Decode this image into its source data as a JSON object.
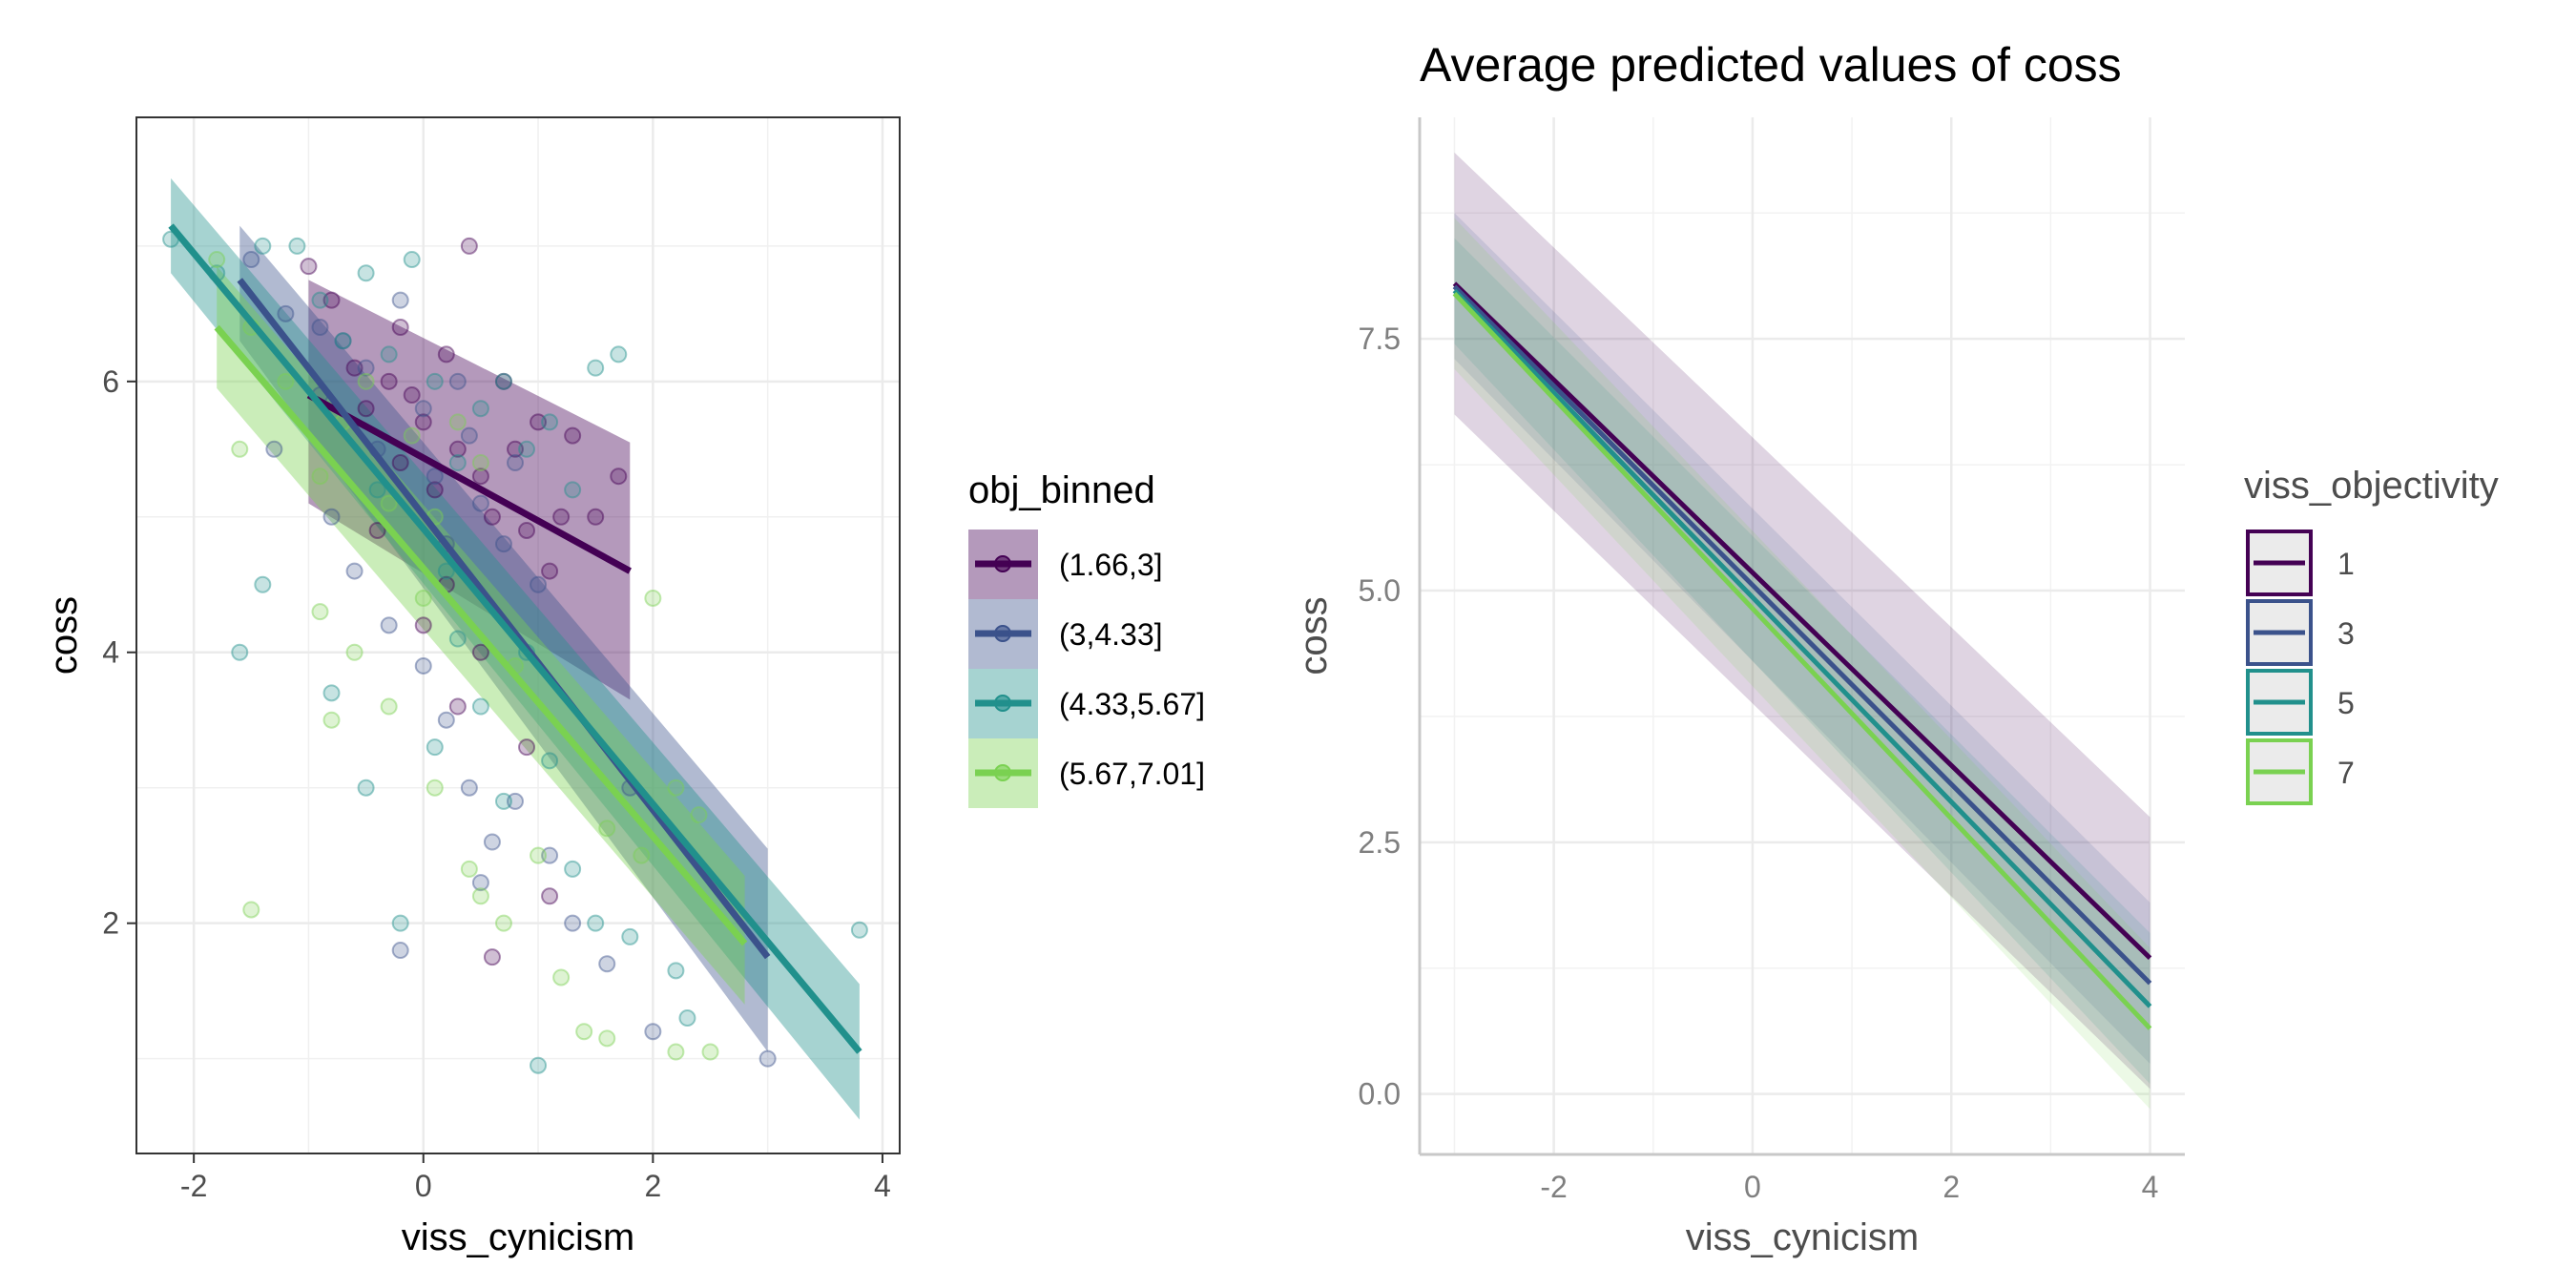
{
  "chart_data": [
    {
      "type": "scatter",
      "title": "",
      "xlabel": "viss_cynicism",
      "ylabel": "coss",
      "xlim": [
        -2.5,
        4.15
      ],
      "ylim": [
        0.3,
        7.95
      ],
      "xticks": [
        -2,
        0,
        2,
        4
      ],
      "yticks": [
        2,
        4,
        6
      ],
      "grid": true,
      "legend": {
        "title": "obj_binned",
        "placement": "right"
      },
      "series": [
        {
          "name": "(1.66,3]",
          "color": "#440154",
          "fit": {
            "x": [
              -1.0,
              1.8
            ],
            "y": [
              5.9,
              4.6
            ]
          },
          "band": {
            "x": [
              -1.0,
              1.8
            ],
            "lo": [
              5.1,
              3.65
            ],
            "hi": [
              6.75,
              5.55
            ]
          },
          "points": [
            [
              -1.0,
              6.85
            ],
            [
              -0.8,
              6.6
            ],
            [
              -0.6,
              6.1
            ],
            [
              -0.5,
              5.8
            ],
            [
              -0.3,
              6.0
            ],
            [
              -0.2,
              5.4
            ],
            [
              -0.1,
              5.9
            ],
            [
              0.0,
              5.7
            ],
            [
              0.1,
              5.2
            ],
            [
              0.2,
              6.2
            ],
            [
              0.3,
              5.5
            ],
            [
              0.4,
              7.0
            ],
            [
              0.5,
              5.3
            ],
            [
              0.6,
              5.0
            ],
            [
              0.7,
              6.0
            ],
            [
              0.8,
              5.5
            ],
            [
              0.9,
              4.9
            ],
            [
              1.0,
              5.7
            ],
            [
              1.1,
              4.6
            ],
            [
              1.2,
              5.0
            ],
            [
              1.3,
              5.6
            ],
            [
              1.5,
              5.0
            ],
            [
              1.7,
              5.3
            ],
            [
              0.2,
              4.5
            ],
            [
              0.5,
              4.0
            ],
            [
              -0.4,
              4.9
            ],
            [
              0.9,
              3.3
            ],
            [
              0.6,
              1.75
            ],
            [
              1.1,
              2.2
            ],
            [
              0.3,
              3.6
            ],
            [
              -0.2,
              6.4
            ],
            [
              0.0,
              4.2
            ]
          ]
        },
        {
          "name": "(3,4.33]",
          "color": "#3b528b",
          "fit": {
            "x": [
              -1.6,
              3.0
            ],
            "y": [
              6.75,
              1.75
            ]
          },
          "band": {
            "x": [
              -1.6,
              3.0
            ],
            "lo": [
              6.3,
              1.05
            ],
            "hi": [
              7.15,
              2.55
            ]
          },
          "points": [
            [
              -1.5,
              6.9
            ],
            [
              -1.2,
              6.5
            ],
            [
              -0.9,
              5.9
            ],
            [
              -0.7,
              6.3
            ],
            [
              -0.5,
              6.1
            ],
            [
              -0.4,
              5.5
            ],
            [
              -0.2,
              6.6
            ],
            [
              0.0,
              5.8
            ],
            [
              0.1,
              5.3
            ],
            [
              0.3,
              6.0
            ],
            [
              0.4,
              5.6
            ],
            [
              0.5,
              5.1
            ],
            [
              0.7,
              4.8
            ],
            [
              0.8,
              5.4
            ],
            [
              1.0,
              4.5
            ],
            [
              -0.8,
              5.0
            ],
            [
              -0.6,
              4.6
            ],
            [
              -0.3,
              4.2
            ],
            [
              0.0,
              3.9
            ],
            [
              0.2,
              3.5
            ],
            [
              0.4,
              3.0
            ],
            [
              0.6,
              2.6
            ],
            [
              0.8,
              2.9
            ],
            [
              1.1,
              2.5
            ],
            [
              1.3,
              2.0
            ],
            [
              1.6,
              1.7
            ],
            [
              2.0,
              1.2
            ],
            [
              3.0,
              1.0
            ],
            [
              -0.2,
              1.8
            ],
            [
              0.5,
              2.3
            ],
            [
              -1.3,
              5.5
            ],
            [
              -0.9,
              6.4
            ],
            [
              0.2,
              4.8
            ],
            [
              1.8,
              3.0
            ]
          ]
        },
        {
          "name": "(4.33,5.67]",
          "color": "#21908c",
          "fit": {
            "x": [
              -2.2,
              3.8
            ],
            "y": [
              7.15,
              1.05
            ]
          },
          "band": {
            "x": [
              -2.2,
              3.8
            ],
            "lo": [
              6.8,
              0.55
            ],
            "hi": [
              7.5,
              1.55
            ]
          },
          "points": [
            [
              -2.2,
              7.05
            ],
            [
              -1.8,
              6.8
            ],
            [
              -1.4,
              7.0
            ],
            [
              -1.1,
              7.0
            ],
            [
              -0.9,
              6.6
            ],
            [
              -0.7,
              6.3
            ],
            [
              -0.5,
              6.8
            ],
            [
              -0.3,
              6.2
            ],
            [
              -0.1,
              6.9
            ],
            [
              0.1,
              6.0
            ],
            [
              0.3,
              5.4
            ],
            [
              0.5,
              5.8
            ],
            [
              0.7,
              6.0
            ],
            [
              0.9,
              5.5
            ],
            [
              1.1,
              5.7
            ],
            [
              1.3,
              5.2
            ],
            [
              1.5,
              6.1
            ],
            [
              1.7,
              6.2
            ],
            [
              -1.6,
              4.0
            ],
            [
              -1.4,
              4.5
            ],
            [
              -0.8,
              3.7
            ],
            [
              -0.5,
              3.0
            ],
            [
              -0.2,
              2.0
            ],
            [
              0.1,
              3.3
            ],
            [
              0.3,
              4.1
            ],
            [
              0.5,
              3.6
            ],
            [
              0.7,
              2.9
            ],
            [
              0.9,
              4.0
            ],
            [
              1.1,
              3.2
            ],
            [
              1.3,
              2.4
            ],
            [
              1.5,
              2.0
            ],
            [
              1.8,
              1.9
            ],
            [
              2.2,
              1.65
            ],
            [
              3.8,
              1.95
            ],
            [
              1.0,
              0.95
            ],
            [
              2.3,
              1.3
            ],
            [
              0.2,
              4.6
            ],
            [
              -0.4,
              5.2
            ]
          ]
        },
        {
          "name": "(5.67,7.01]",
          "color": "#7ad151",
          "fit": {
            "x": [
              -1.8,
              2.8
            ],
            "y": [
              6.4,
              1.85
            ]
          },
          "band": {
            "x": [
              -1.8,
              2.8
            ],
            "lo": [
              5.95,
              1.4
            ],
            "hi": [
              6.85,
              2.35
            ]
          },
          "points": [
            [
              -1.8,
              6.9
            ],
            [
              -1.5,
              6.4
            ],
            [
              -1.6,
              5.5
            ],
            [
              -1.2,
              6.0
            ],
            [
              -0.9,
              5.3
            ],
            [
              -0.7,
              5.7
            ],
            [
              -0.5,
              6.0
            ],
            [
              -0.3,
              5.1
            ],
            [
              -0.1,
              5.6
            ],
            [
              0.1,
              5.0
            ],
            [
              0.3,
              5.7
            ],
            [
              0.5,
              5.4
            ],
            [
              -0.9,
              4.3
            ],
            [
              -0.8,
              3.5
            ],
            [
              -0.6,
              4.0
            ],
            [
              -0.3,
              3.6
            ],
            [
              0.1,
              3.0
            ],
            [
              0.4,
              2.4
            ],
            [
              0.7,
              2.0
            ],
            [
              1.0,
              2.5
            ],
            [
              1.2,
              1.6
            ],
            [
              1.4,
              1.2
            ],
            [
              1.6,
              1.15
            ],
            [
              2.2,
              1.05
            ],
            [
              2.5,
              1.05
            ],
            [
              2.2,
              3.0
            ],
            [
              2.4,
              2.8
            ],
            [
              1.9,
              2.5
            ],
            [
              2.0,
              4.4
            ],
            [
              -1.5,
              2.1
            ],
            [
              0.5,
              2.2
            ],
            [
              1.6,
              2.7
            ],
            [
              0.8,
              3.9
            ],
            [
              0.0,
              4.4
            ]
          ]
        }
      ]
    },
    {
      "type": "line",
      "title": "Average predicted values of coss",
      "xlabel": "viss_cynicism",
      "ylabel": "coss",
      "xlim": [
        -3.35,
        4.35
      ],
      "ylim": [
        -0.6,
        9.7
      ],
      "xticks": [
        -2,
        0,
        2,
        4
      ],
      "yticks": [
        0.0,
        2.5,
        5.0,
        7.5
      ],
      "ytick_labels": [
        "0.0",
        "2.5",
        "5.0",
        "7.5"
      ],
      "grid": true,
      "legend": {
        "title": "viss_objectivity",
        "placement": "right"
      },
      "series": [
        {
          "name": "1",
          "color": "#440154",
          "x": [
            -3,
            4
          ],
          "y": [
            8.05,
            1.35
          ],
          "band_lo": [
            6.75,
            0.05
          ],
          "band_hi": [
            9.35,
            2.75
          ]
        },
        {
          "name": "3",
          "color": "#3b528b",
          "x": [
            -3,
            4
          ],
          "y": [
            8.02,
            1.1
          ],
          "band_lo": [
            7.3,
            0.3
          ],
          "band_hi": [
            8.75,
            1.9
          ]
        },
        {
          "name": "5",
          "color": "#21908c",
          "x": [
            -3,
            4
          ],
          "y": [
            7.98,
            0.87
          ],
          "band_lo": [
            7.45,
            0.1
          ],
          "band_hi": [
            8.5,
            1.6
          ]
        },
        {
          "name": "7",
          "color": "#7ad151",
          "x": [
            -3,
            4
          ],
          "y": [
            7.95,
            0.65
          ],
          "band_lo": [
            7.2,
            -0.15
          ],
          "band_hi": [
            8.7,
            1.45
          ]
        }
      ]
    }
  ]
}
